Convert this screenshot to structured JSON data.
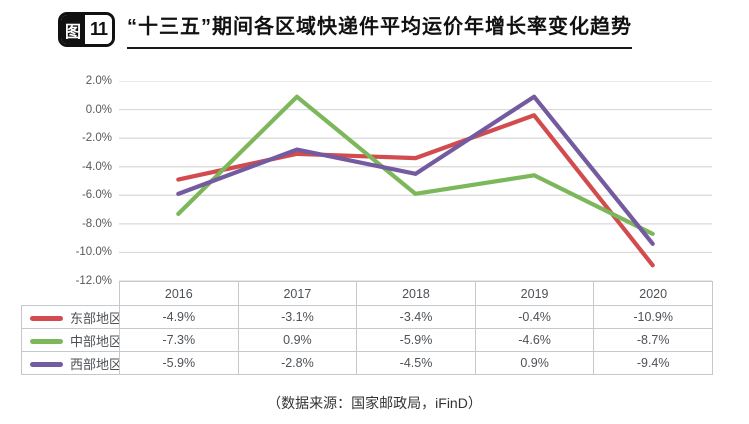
{
  "header": {
    "badge_prefix": "图",
    "badge_number": "11",
    "title": "“十三五”期间各区域快递件平均运价年增长率变化趋势"
  },
  "colors": {
    "gridline": "#d9d9d9",
    "table_border": "#c6c9cc",
    "axis_text": "#595959",
    "title_text": "#111111"
  },
  "chart_data": {
    "type": "line",
    "categories": [
      "2016",
      "2017",
      "2018",
      "2019",
      "2020"
    ],
    "series": [
      {
        "name": "东部地区",
        "color": "#d24b4e",
        "values": [
          -4.9,
          -3.1,
          -3.4,
          -0.4,
          -10.9
        ]
      },
      {
        "name": "中部地区",
        "color": "#7cb85b",
        "values": [
          -7.3,
          0.9,
          -5.9,
          -4.6,
          -8.7
        ]
      },
      {
        "name": "西部地区",
        "color": "#745a9e",
        "values": [
          -5.9,
          -2.8,
          -4.5,
          0.9,
          -9.4
        ]
      }
    ],
    "table_values": [
      [
        "-4.9%",
        "-3.1%",
        "-3.4%",
        "-0.4%",
        "-10.9%"
      ],
      [
        "-7.3%",
        "0.9%",
        "-5.9%",
        "-4.6%",
        "-8.7%"
      ],
      [
        "-5.9%",
        "-2.8%",
        "-4.5%",
        "0.9%",
        "-9.4%"
      ]
    ],
    "ylim": [
      -12,
      2
    ],
    "ytick_step": 2,
    "ytick_labels": [
      "2.0%",
      "0.0%",
      "-2.0%",
      "-4.0%",
      "-6.0%",
      "-8.0%",
      "-10.0%",
      "-12.0%"
    ],
    "grid": "horizontal",
    "legend_position": "table-left",
    "title": "“十三五”期间各区域快递件平均运价年增长率变化趋势"
  },
  "footer": {
    "source": "（数据来源：国家邮政局，iFinD）"
  }
}
